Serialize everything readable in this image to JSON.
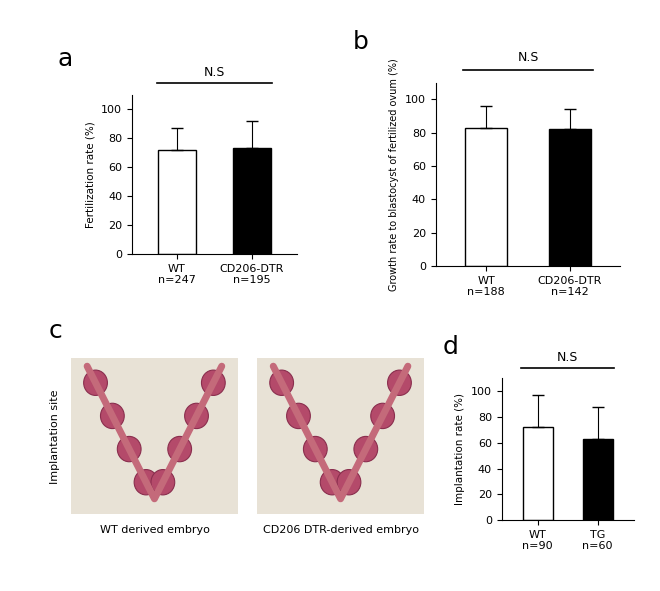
{
  "chart_data": [
    {
      "type": "bar",
      "title": "a",
      "annotation": "N.S",
      "categories": [
        "WT\nn=247",
        "CD206-DTR\nn=195"
      ],
      "values": [
        72,
        73
      ],
      "errors": [
        15,
        19
      ],
      "colors": [
        "#ffffff",
        "#000000"
      ],
      "y_label": "Fertilization rate (%)",
      "ylim": [
        0,
        110
      ],
      "yticks": [
        0,
        20,
        40,
        60,
        80,
        100
      ]
    },
    {
      "type": "bar",
      "title": "b",
      "annotation": "N.S",
      "categories": [
        "WT\nn=188",
        "CD206-DTR\nn=142"
      ],
      "values": [
        83,
        82
      ],
      "errors": [
        13,
        12
      ],
      "colors": [
        "#ffffff",
        "#000000"
      ],
      "y_label": "Growth rate to blastocyst of fertilized ovum (%)",
      "ylim": [
        0,
        110
      ],
      "yticks": [
        0,
        20,
        40,
        60,
        80,
        100
      ]
    },
    {
      "type": "bar",
      "title": "d",
      "annotation": "N.S",
      "categories": [
        "WT\nn=90",
        "TG\nn=60"
      ],
      "values": [
        72,
        63
      ],
      "errors": [
        25,
        25
      ],
      "colors": [
        "#ffffff",
        "#000000"
      ],
      "y_label": "Implantation rate (%)",
      "ylim": [
        0,
        110
      ],
      "yticks": [
        0,
        20,
        40,
        60,
        80,
        100
      ]
    }
  ],
  "image_panel": {
    "title": "c",
    "side_label": "Implantation site",
    "captions": [
      "WT derived embryo",
      "CD206 DTR-derived embryo"
    ]
  }
}
